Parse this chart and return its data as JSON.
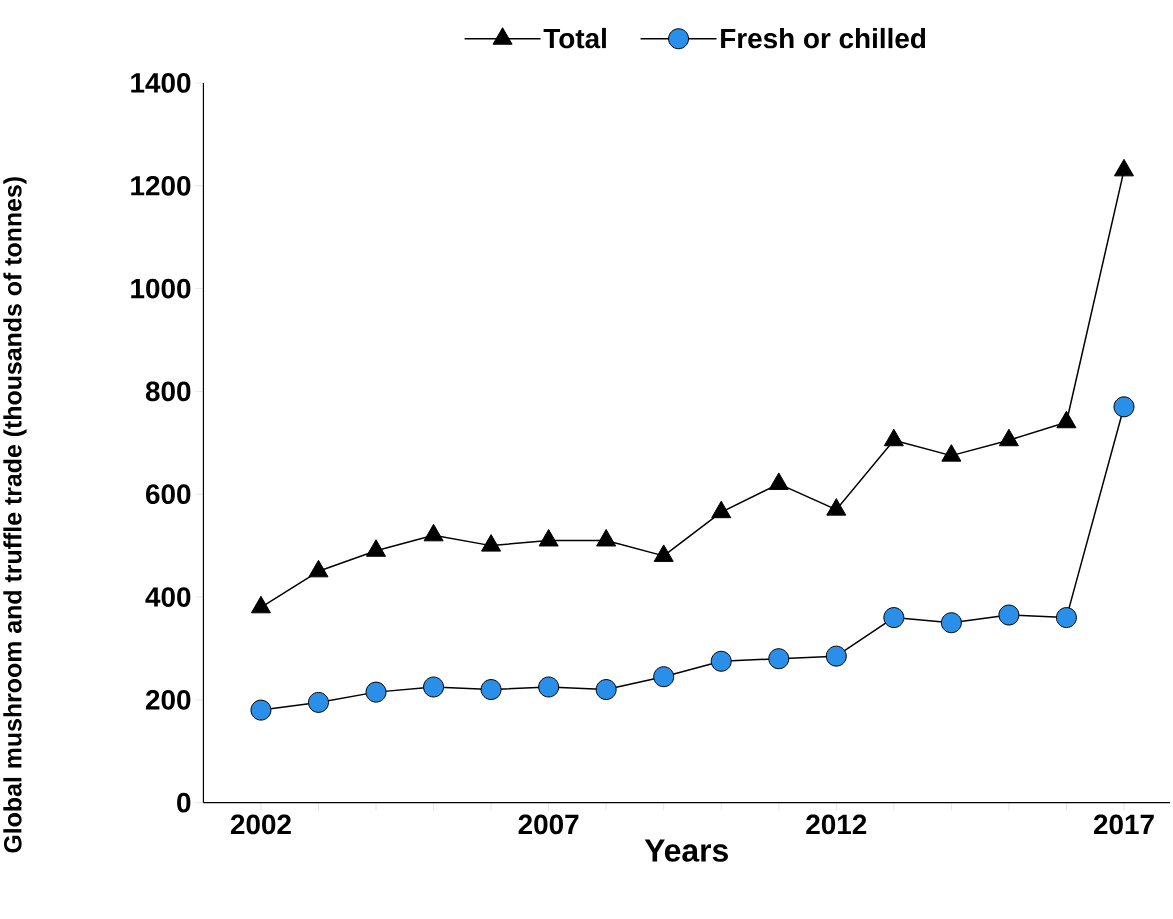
{
  "chart_data": {
    "type": "line",
    "xlabel": "Years",
    "ylabel": "Global mushroom and truffle trade (thousands of tonnes)",
    "x": [
      2002,
      2003,
      2004,
      2005,
      2006,
      2007,
      2008,
      2009,
      2010,
      2011,
      2012,
      2013,
      2014,
      2015,
      2016,
      2017
    ],
    "series": [
      {
        "name": "Total",
        "color": "#000000",
        "marker": "triangle",
        "values": [
          380,
          450,
          490,
          520,
          500,
          510,
          510,
          480,
          565,
          620,
          570,
          705,
          675,
          705,
          740,
          1230
        ]
      },
      {
        "name": "Fresh or chilled",
        "color": "#2a8fe8",
        "marker": "circle",
        "values": [
          180,
          195,
          215,
          225,
          220,
          225,
          220,
          245,
          275,
          280,
          285,
          360,
          350,
          365,
          360,
          770
        ]
      }
    ],
    "xlim": [
      2001,
      2017.8
    ],
    "ylim": [
      0,
      1400
    ],
    "xticks": [
      2002,
      {
        "value": 2003,
        "label": null
      },
      {
        "value": 2004,
        "label": null
      },
      {
        "value": 2005,
        "label": null
      },
      {
        "value": 2006,
        "label": null
      },
      2007,
      {
        "value": 2008,
        "label": null
      },
      {
        "value": 2009,
        "label": null
      },
      {
        "value": 2010,
        "label": null
      },
      {
        "value": 2011,
        "label": null
      },
      2012,
      {
        "value": 2013,
        "label": null
      },
      {
        "value": 2014,
        "label": null
      },
      {
        "value": 2015,
        "label": null
      },
      {
        "value": 2016,
        "label": null
      },
      2017
    ],
    "yticks": [
      0,
      200,
      400,
      600,
      800,
      1000,
      1200,
      1400
    ],
    "legend": "top",
    "line_style": "solid"
  }
}
